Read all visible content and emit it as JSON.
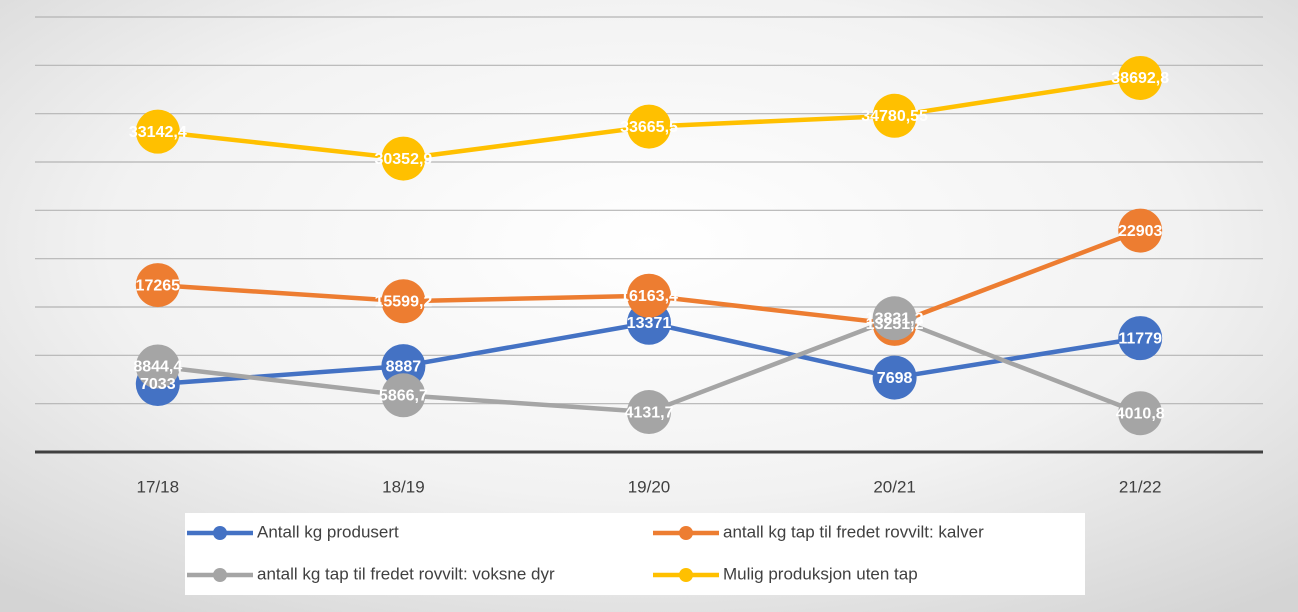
{
  "chart_data": {
    "type": "line",
    "categories": [
      "17/18",
      "18/19",
      "19/20",
      "20/21",
      "21/22"
    ],
    "series": [
      {
        "name": "Antall kg produsert",
        "color": "#4472c4",
        "values": [
          7033,
          8887,
          13371,
          7698,
          11779
        ],
        "value_labels": [
          "7033",
          "8887",
          "13371",
          "7698",
          "11779"
        ]
      },
      {
        "name": "antall kg tap til fredet rovvilt: kalver",
        "color": "#ed7d31",
        "values": [
          17265,
          15599.2,
          16163.4,
          13251.2,
          22903
        ],
        "value_labels": [
          "17265",
          "15599,2",
          "16163,4",
          "13251,2",
          "22903"
        ]
      },
      {
        "name": "antall kg tap til fredet rovvilt: voksne dyr",
        "color": "#a5a5a5",
        "values": [
          8844.4,
          5866.7,
          4131.7,
          13831.2,
          4010.8
        ],
        "value_labels": [
          "8844,4",
          "5866,7",
          "4131,7",
          "13831,2",
          "4010,8"
        ]
      },
      {
        "name": "Mulig produksjon uten tap",
        "color": "#ffc000",
        "values": [
          33142.4,
          30352.9,
          33665.5,
          34780.55,
          38692.8
        ],
        "value_labels": [
          "33142,4",
          "30352,9",
          "33665,5",
          "34780,55",
          "38692,8"
        ]
      }
    ],
    "ylim": [
      0,
      45000
    ],
    "yticks": [
      0,
      5000,
      10000,
      15000,
      20000,
      25000,
      30000,
      35000,
      40000,
      45000
    ],
    "ytick_labels": false,
    "grid": true,
    "legend": "bottom"
  }
}
